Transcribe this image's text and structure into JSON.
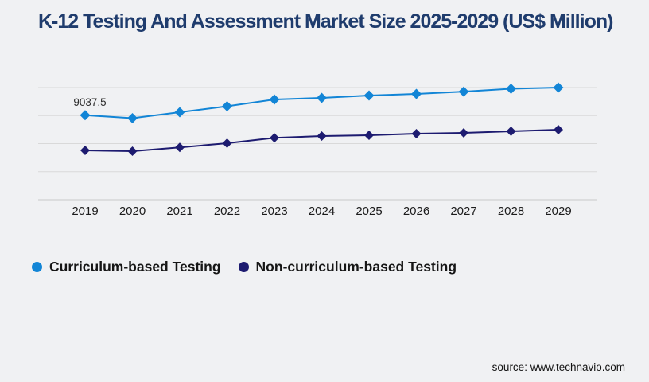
{
  "page": {
    "background_color": "#f0f1f3"
  },
  "chart_data": {
    "type": "line",
    "title": "K-12 Testing And Assessment Market Size 2025-2029 (US$ Million)",
    "xlabel": "",
    "ylabel": "",
    "categories": [
      "2019",
      "2020",
      "2021",
      "2022",
      "2023",
      "2024",
      "2025",
      "2026",
      "2027",
      "2028",
      "2029"
    ],
    "series": [
      {
        "name": "Curriculum-based Testing",
        "color": "#1285d6",
        "marker": "diamond",
        "values": [
          9037.5,
          8725,
          9360,
          10000,
          10720,
          10890,
          11150,
          11320,
          11570,
          11870,
          12000
        ]
      },
      {
        "name": "Non-curriculum-based Testing",
        "color": "#1d1b70",
        "marker": "diamond",
        "values": [
          5280,
          5190,
          5590,
          6040,
          6610,
          6810,
          6890,
          7060,
          7150,
          7320,
          7490
        ]
      }
    ],
    "data_label": {
      "series_index": 0,
      "point_index": 0,
      "text": "9037.5"
    },
    "ylim": [
      0,
      12000
    ],
    "grid": {
      "horizontal_lines": 5,
      "grid_color": "#d9d9d9",
      "axis_color": "#c9c9c9"
    },
    "legend_position": "bottom-left",
    "tick_label_color": "#1c1c1c",
    "value_label_color": "#2e2e2e"
  },
  "footer": {
    "source_text": "source: www.technavio.com"
  }
}
